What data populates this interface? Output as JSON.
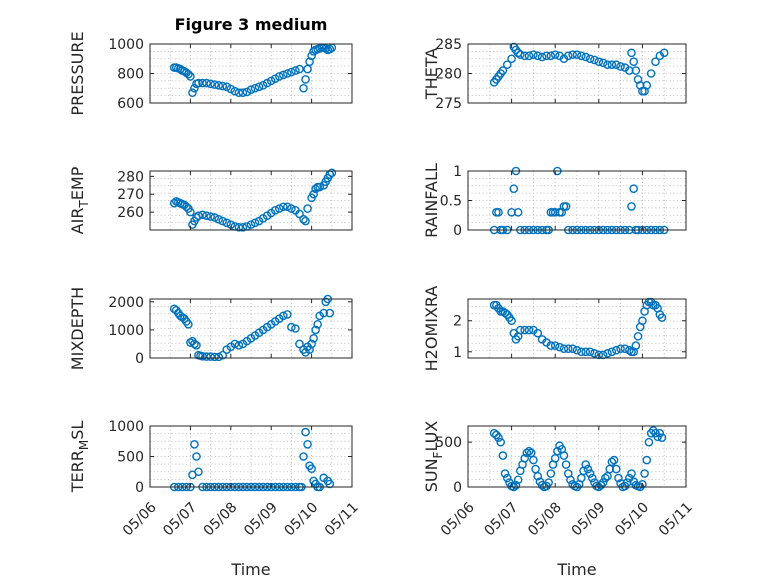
{
  "title": "Figure 3 medium",
  "marker_color": "#0072bd",
  "chart_data": [
    {
      "name": "pressure",
      "type": "scatter",
      "ylabel": "PRESSURE",
      "xlabel": "",
      "ylim": [
        600,
        1000
      ],
      "yticks": [
        600,
        800,
        1000
      ],
      "xlim": [
        0,
        5
      ],
      "x": [
        0.6,
        0.65,
        0.7,
        0.75,
        0.8,
        0.85,
        0.9,
        0.95,
        1.0,
        1.05,
        1.1,
        1.15,
        1.2,
        1.3,
        1.4,
        1.5,
        1.6,
        1.7,
        1.8,
        1.9,
        2.0,
        2.1,
        2.2,
        2.3,
        2.4,
        2.5,
        2.6,
        2.7,
        2.8,
        2.9,
        3.0,
        3.1,
        3.2,
        3.3,
        3.4,
        3.5,
        3.6,
        3.7,
        3.8,
        3.85,
        3.9,
        3.95,
        4.0,
        4.05,
        4.1,
        4.15,
        4.2,
        4.25,
        4.3,
        4.35,
        4.4,
        4.45,
        4.5
      ],
      "y": [
        840,
        840,
        835,
        830,
        820,
        815,
        805,
        795,
        780,
        670,
        700,
        730,
        735,
        735,
        735,
        730,
        725,
        720,
        715,
        710,
        695,
        680,
        670,
        670,
        675,
        690,
        700,
        710,
        720,
        735,
        750,
        765,
        780,
        790,
        800,
        810,
        820,
        830,
        700,
        760,
        830,
        880,
        920,
        950,
        960,
        965,
        970,
        975,
        975,
        970,
        960,
        965,
        975
      ]
    },
    {
      "name": "theta",
      "type": "scatter",
      "ylabel": "THETA",
      "xlabel": "",
      "ylim": [
        275,
        285
      ],
      "yticks": [
        275,
        280,
        285
      ],
      "xlim": [
        0,
        5
      ],
      "x": [
        0.6,
        0.65,
        0.7,
        0.75,
        0.8,
        0.9,
        1.0,
        1.05,
        1.1,
        1.15,
        1.2,
        1.3,
        1.4,
        1.5,
        1.6,
        1.7,
        1.8,
        1.9,
        2.0,
        2.1,
        2.2,
        2.3,
        2.4,
        2.5,
        2.6,
        2.7,
        2.8,
        2.9,
        3.0,
        3.1,
        3.2,
        3.3,
        3.4,
        3.5,
        3.6,
        3.7,
        3.75,
        3.8,
        3.85,
        3.9,
        3.95,
        4.0,
        4.05,
        4.1,
        4.2,
        4.3,
        4.4,
        4.5
      ],
      "y": [
        278.5,
        279.0,
        279.5,
        280.0,
        280.5,
        281.5,
        282.5,
        284.5,
        284.0,
        283.5,
        283.2,
        283.0,
        283.0,
        283.2,
        283.0,
        282.8,
        283.0,
        283.0,
        283.2,
        283.0,
        282.5,
        283.0,
        283.2,
        283.2,
        283.0,
        282.8,
        282.5,
        282.3,
        282.0,
        281.8,
        281.5,
        281.5,
        281.5,
        281.2,
        281.0,
        280.5,
        283.5,
        282.0,
        280.5,
        279.0,
        278.0,
        277.0,
        277.0,
        278.0,
        280.0,
        282.0,
        283.0,
        283.5
      ]
    },
    {
      "name": "air_temp",
      "type": "scatter",
      "ylabel_parts": [
        "AIR",
        "T",
        "EMP"
      ],
      "xlabel": "",
      "ylim": [
        250,
        283
      ],
      "yticks": [
        260,
        270,
        280
      ],
      "xlim": [
        0,
        5
      ],
      "x": [
        0.6,
        0.65,
        0.7,
        0.75,
        0.8,
        0.85,
        0.9,
        0.95,
        1.0,
        1.05,
        1.1,
        1.15,
        1.2,
        1.3,
        1.4,
        1.5,
        1.6,
        1.7,
        1.8,
        1.9,
        2.0,
        2.1,
        2.2,
        2.3,
        2.4,
        2.5,
        2.6,
        2.7,
        2.8,
        2.9,
        3.0,
        3.1,
        3.2,
        3.3,
        3.4,
        3.5,
        3.6,
        3.7,
        3.8,
        3.85,
        3.9,
        4.0,
        4.05,
        4.1,
        4.15,
        4.2,
        4.3,
        4.35,
        4.4,
        4.45,
        4.5
      ],
      "y": [
        265,
        266,
        265.5,
        265,
        264.5,
        264,
        263,
        262,
        260,
        253,
        255,
        257,
        258,
        258.5,
        258,
        257.5,
        257,
        256,
        255,
        254,
        253,
        252,
        251.5,
        251.5,
        252,
        253,
        254,
        255,
        256.5,
        258,
        259.5,
        261,
        262,
        263,
        263,
        262,
        261,
        259,
        256,
        255,
        262,
        268,
        270,
        273,
        274,
        274,
        275,
        277,
        279,
        281,
        282
      ]
    },
    {
      "name": "rainfall",
      "type": "scatter",
      "ylabel": "RAINFALL",
      "xlabel": "",
      "ylim": [
        0,
        1
      ],
      "yticks": [
        0,
        0.5,
        1
      ],
      "xlim": [
        0,
        5
      ],
      "x": [
        0.6,
        0.65,
        0.7,
        0.75,
        0.8,
        0.9,
        1.0,
        1.05,
        1.1,
        1.15,
        1.2,
        1.3,
        1.4,
        1.5,
        1.6,
        1.7,
        1.8,
        1.85,
        1.9,
        1.95,
        2.0,
        2.05,
        2.1,
        2.15,
        2.2,
        2.25,
        2.3,
        2.4,
        2.5,
        2.6,
        2.7,
        2.8,
        2.9,
        3.0,
        3.1,
        3.2,
        3.3,
        3.4,
        3.5,
        3.6,
        3.7,
        3.75,
        3.8,
        3.85,
        3.9,
        4.0,
        4.1,
        4.2,
        4.3,
        4.4,
        4.5
      ],
      "y": [
        0.0,
        0.3,
        0.3,
        0.0,
        0.0,
        0.0,
        0.3,
        0.7,
        1.0,
        0.3,
        0.0,
        0.0,
        0.0,
        0.0,
        0.0,
        0.0,
        0.0,
        0.0,
        0.3,
        0.3,
        0.3,
        1.0,
        0.3,
        0.3,
        0.4,
        0.4,
        0.0,
        0.0,
        0.0,
        0.0,
        0.0,
        0.0,
        0.0,
        0.0,
        0.0,
        0.0,
        0.0,
        0.0,
        0.0,
        0.0,
        0.0,
        0.4,
        0.7,
        0.0,
        0.0,
        0.0,
        0.0,
        0.0,
        0.0,
        0.0,
        0.0
      ]
    },
    {
      "name": "mixdepth",
      "type": "scatter",
      "ylabel": "MIXDEPTH",
      "xlabel": "",
      "ylim": [
        0,
        2100
      ],
      "yticks": [
        0,
        1000,
        2000
      ],
      "xlim": [
        0,
        5
      ],
      "x": [
        0.6,
        0.65,
        0.7,
        0.75,
        0.8,
        0.85,
        0.9,
        0.95,
        1.0,
        1.05,
        1.1,
        1.15,
        1.2,
        1.25,
        1.3,
        1.4,
        1.5,
        1.6,
        1.7,
        1.8,
        1.9,
        2.0,
        2.1,
        2.2,
        2.3,
        2.4,
        2.5,
        2.6,
        2.7,
        2.8,
        2.9,
        3.0,
        3.1,
        3.2,
        3.3,
        3.4,
        3.5,
        3.6,
        3.7,
        3.8,
        3.85,
        3.9,
        3.95,
        4.0,
        4.05,
        4.1,
        4.15,
        4.2,
        4.3,
        4.35,
        4.4,
        4.45
      ],
      "y": [
        1750,
        1700,
        1600,
        1500,
        1450,
        1400,
        1300,
        1200,
        550,
        600,
        500,
        450,
        100,
        80,
        60,
        50,
        50,
        40,
        40,
        100,
        300,
        400,
        500,
        450,
        500,
        600,
        700,
        800,
        900,
        1000,
        1100,
        1200,
        1300,
        1400,
        1500,
        1550,
        1100,
        1050,
        500,
        300,
        200,
        400,
        300,
        500,
        700,
        1000,
        1200,
        1500,
        1600,
        2000,
        2100,
        1600
      ]
    },
    {
      "name": "h2omixra",
      "type": "scatter",
      "ylabel": "H2OMIXRA",
      "xlabel": "",
      "ylim": [
        0.8,
        2.7
      ],
      "yticks": [
        1,
        2
      ],
      "xlim": [
        0,
        5
      ],
      "x": [
        0.6,
        0.65,
        0.7,
        0.75,
        0.8,
        0.85,
        0.9,
        0.95,
        1.0,
        1.05,
        1.1,
        1.15,
        1.2,
        1.3,
        1.4,
        1.5,
        1.6,
        1.7,
        1.8,
        1.9,
        2.0,
        2.1,
        2.2,
        2.3,
        2.4,
        2.5,
        2.6,
        2.7,
        2.8,
        2.9,
        3.0,
        3.1,
        3.2,
        3.3,
        3.4,
        3.5,
        3.6,
        3.7,
        3.75,
        3.8,
        3.85,
        3.9,
        3.95,
        4.0,
        4.05,
        4.1,
        4.15,
        4.2,
        4.25,
        4.3,
        4.35,
        4.4,
        4.45
      ],
      "y": [
        2.5,
        2.5,
        2.4,
        2.3,
        2.3,
        2.25,
        2.2,
        2.1,
        2.0,
        1.6,
        1.4,
        1.5,
        1.7,
        1.7,
        1.7,
        1.7,
        1.6,
        1.4,
        1.3,
        1.2,
        1.2,
        1.15,
        1.1,
        1.1,
        1.1,
        1.05,
        1.0,
        1.0,
        1.0,
        0.95,
        0.9,
        0.9,
        0.95,
        1.0,
        1.05,
        1.1,
        1.1,
        1.05,
        1.0,
        1.0,
        1.2,
        1.5,
        1.8,
        2.0,
        2.3,
        2.5,
        2.6,
        2.6,
        2.5,
        2.5,
        2.4,
        2.2,
        2.1
      ]
    },
    {
      "name": "terr_msl",
      "type": "scatter",
      "ylabel_parts": [
        "TERR",
        "M",
        "SL"
      ],
      "xlabel": "Time",
      "ylim": [
        0,
        1000
      ],
      "yticks": [
        0,
        500,
        1000
      ],
      "xlim": [
        0,
        5
      ],
      "xticklabels": [
        "05/06",
        "05/07",
        "05/08",
        "05/09",
        "05/10",
        "05/11"
      ],
      "x": [
        0.6,
        0.7,
        0.8,
        0.9,
        1.0,
        1.05,
        1.1,
        1.15,
        1.2,
        1.3,
        1.4,
        1.5,
        1.6,
        1.7,
        1.8,
        1.9,
        2.0,
        2.1,
        2.2,
        2.3,
        2.4,
        2.5,
        2.6,
        2.7,
        2.8,
        2.9,
        3.0,
        3.1,
        3.2,
        3.3,
        3.4,
        3.5,
        3.6,
        3.7,
        3.75,
        3.8,
        3.85,
        3.9,
        3.95,
        4.0,
        4.05,
        4.1,
        4.15,
        4.2,
        4.3,
        4.4,
        4.45
      ],
      "y": [
        0,
        0,
        0,
        0,
        0,
        200,
        700,
        500,
        250,
        0,
        0,
        0,
        0,
        0,
        0,
        0,
        0,
        0,
        0,
        0,
        0,
        0,
        0,
        0,
        0,
        0,
        0,
        0,
        0,
        0,
        0,
        0,
        0,
        0,
        0,
        500,
        900,
        700,
        350,
        300,
        100,
        50,
        0,
        0,
        150,
        100,
        50
      ]
    },
    {
      "name": "sun_flux",
      "type": "scatter",
      "ylabel_parts": [
        "SUN",
        "F",
        "LUX"
      ],
      "xlabel": "Time",
      "ylim": [
        0,
        680
      ],
      "yticks": [
        0,
        500
      ],
      "xlim": [
        0,
        5
      ],
      "xticklabels": [
        "05/06",
        "05/07",
        "05/08",
        "05/09",
        "05/10",
        "05/11"
      ],
      "x": [
        0.6,
        0.65,
        0.7,
        0.75,
        0.8,
        0.85,
        0.9,
        0.95,
        1.0,
        1.05,
        1.1,
        1.15,
        1.2,
        1.25,
        1.3,
        1.35,
        1.4,
        1.45,
        1.5,
        1.55,
        1.6,
        1.65,
        1.7,
        1.75,
        1.8,
        1.85,
        1.9,
        1.95,
        2.0,
        2.05,
        2.1,
        2.15,
        2.2,
        2.25,
        2.3,
        2.35,
        2.4,
        2.45,
        2.5,
        2.55,
        2.6,
        2.65,
        2.7,
        2.75,
        2.8,
        2.85,
        2.9,
        2.95,
        3.0,
        3.05,
        3.1,
        3.15,
        3.2,
        3.25,
        3.3,
        3.35,
        3.4,
        3.45,
        3.5,
        3.55,
        3.6,
        3.65,
        3.7,
        3.75,
        3.8,
        3.85,
        3.9,
        3.95,
        4.0,
        4.05,
        4.1,
        4.15,
        4.2,
        4.25,
        4.3,
        4.35,
        4.4,
        4.45
      ],
      "y": [
        600,
        580,
        550,
        500,
        350,
        150,
        100,
        50,
        10,
        0,
        20,
        80,
        180,
        250,
        320,
        380,
        400,
        380,
        300,
        200,
        120,
        60,
        20,
        0,
        10,
        50,
        150,
        250,
        320,
        400,
        460,
        420,
        350,
        250,
        150,
        80,
        30,
        10,
        0,
        30,
        100,
        180,
        250,
        200,
        150,
        100,
        50,
        10,
        0,
        20,
        50,
        100,
        120,
        200,
        280,
        300,
        200,
        100,
        40,
        0,
        10,
        50,
        100,
        150,
        60,
        20,
        10,
        0,
        30,
        150,
        300,
        500,
        600,
        630,
        600,
        560,
        600,
        550
      ]
    }
  ]
}
